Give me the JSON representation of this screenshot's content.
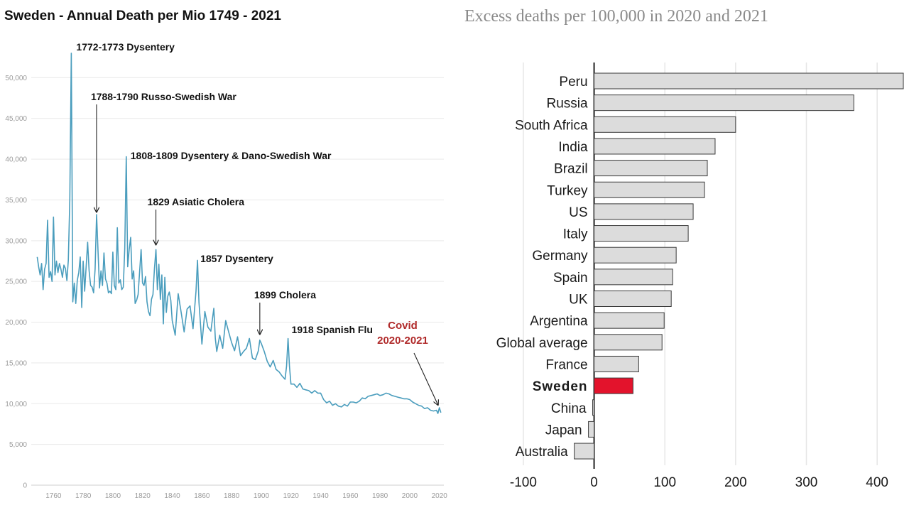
{
  "chart_data": [
    {
      "type": "line",
      "title": "Sweden - Annual Death per Mio 1749 - 2021",
      "xlim": [
        1745,
        2023
      ],
      "ylim": [
        0,
        55000
      ],
      "x_ticks": [
        1760,
        1780,
        1800,
        1820,
        1840,
        1860,
        1880,
        1900,
        1920,
        1940,
        1960,
        1980,
        2000,
        2020
      ],
      "y_ticks": [
        0,
        5000,
        10000,
        15000,
        20000,
        25000,
        30000,
        35000,
        40000,
        45000,
        50000
      ],
      "y_tick_labels": [
        "0",
        "5,000",
        "10,000",
        "15,000",
        "20,000",
        "25,000",
        "30,000",
        "35,000",
        "40,000",
        "45,000",
        "50,000"
      ],
      "grid": "horizontal",
      "line_color": "#4a9dbd",
      "series": [
        {
          "x": [
            1749,
            1750,
            1751,
            1752,
            1753,
            1754,
            1755,
            1756,
            1757,
            1758,
            1759,
            1760,
            1761,
            1762,
            1763,
            1764,
            1765,
            1766,
            1767,
            1768,
            1769,
            1770,
            1771,
            1772,
            1773,
            1774,
            1775,
            1776,
            1777,
            1778,
            1779,
            1780,
            1781,
            1782,
            1783,
            1784,
            1785,
            1786,
            1787,
            1788,
            1789,
            1790,
            1791,
            1792,
            1793,
            1794,
            1795,
            1796,
            1797,
            1798,
            1799,
            1800,
            1801,
            1802,
            1803,
            1804,
            1805,
            1806,
            1807,
            1808,
            1809,
            1810,
            1811,
            1812,
            1813,
            1814,
            1815,
            1816,
            1817,
            1818,
            1819,
            1820,
            1821,
            1822,
            1823,
            1824,
            1825,
            1826,
            1827,
            1828,
            1829,
            1830,
            1831,
            1832,
            1833,
            1834,
            1835,
            1836,
            1837,
            1838,
            1839,
            1840,
            1842,
            1844,
            1846,
            1848,
            1850,
            1852,
            1854,
            1856,
            1857,
            1858,
            1860,
            1862,
            1864,
            1866,
            1868,
            1869,
            1870,
            1872,
            1874,
            1876,
            1878,
            1880,
            1882,
            1884,
            1886,
            1888,
            1890,
            1892,
            1894,
            1896,
            1898,
            1899,
            1900,
            1902,
            1904,
            1906,
            1908,
            1910,
            1912,
            1914,
            1916,
            1917,
            1918,
            1919,
            1920,
            1922,
            1924,
            1926,
            1928,
            1930,
            1932,
            1934,
            1936,
            1938,
            1940,
            1942,
            1944,
            1946,
            1948,
            1950,
            1952,
            1954,
            1956,
            1958,
            1960,
            1962,
            1964,
            1966,
            1968,
            1970,
            1972,
            1974,
            1976,
            1978,
            1980,
            1982,
            1984,
            1986,
            1988,
            1990,
            1992,
            1994,
            1996,
            1998,
            2000,
            2002,
            2004,
            2006,
            2008,
            2010,
            2012,
            2014,
            2016,
            2018,
            2019,
            2020,
            2021
          ],
          "y": [
            28000,
            26800,
            25800,
            27200,
            24000,
            26500,
            27200,
            32500,
            25500,
            26200,
            25000,
            32900,
            25800,
            27500,
            26100,
            27200,
            26500,
            25500,
            27000,
            26600,
            25100,
            27600,
            35000,
            53000,
            22500,
            24800,
            22300,
            25100,
            26100,
            28000,
            21800,
            27500,
            23800,
            26800,
            29800,
            26300,
            24500,
            24300,
            23600,
            26500,
            33200,
            28800,
            24200,
            26300,
            24500,
            28500,
            25300,
            24800,
            23600,
            23800,
            23500,
            28600,
            24500,
            24000,
            31600,
            24800,
            25200,
            24000,
            24300,
            29100,
            40300,
            26800,
            28900,
            30400,
            25300,
            26300,
            22300,
            22700,
            23400,
            26200,
            28900,
            24800,
            24500,
            25600,
            22500,
            21300,
            20800,
            22800,
            23400,
            26600,
            28900,
            24000,
            27100,
            22800,
            25800,
            19800,
            25500,
            21200,
            23200,
            23700,
            22700,
            20200,
            18400,
            23500,
            21200,
            18800,
            21600,
            22000,
            19200,
            23800,
            27600,
            22400,
            17300,
            21300,
            19400,
            18900,
            21700,
            18000,
            16400,
            18400,
            16800,
            20200,
            18800,
            17500,
            16500,
            18200,
            15900,
            16400,
            16800,
            18000,
            15600,
            15400,
            16500,
            17800,
            17400,
            16400,
            15200,
            14500,
            15300,
            14200,
            13900,
            13400,
            13000,
            14600,
            18000,
            14600,
            12400,
            12400,
            12000,
            12500,
            11800,
            11700,
            11600,
            11300,
            11600,
            11300,
            11300,
            10500,
            10100,
            10300,
            9800,
            10000,
            9700,
            9600,
            9900,
            9700,
            10200,
            10200,
            10100,
            10300,
            10700,
            10600,
            10900,
            11000,
            11100,
            11200,
            11000,
            11100,
            11300,
            11200,
            11000,
            10900,
            10800,
            10700,
            10600,
            10600,
            10500,
            10200,
            10000,
            9800,
            9700,
            9400,
            9500,
            9200,
            9100,
            9200,
            8800,
            9500,
            8900
          ]
        }
      ],
      "annotations": [
        {
          "label": "1772-1773 Dysentery",
          "year": 1772,
          "value": 53000,
          "arrow": false
        },
        {
          "label": "1788-1790 Russo-Swedish War",
          "year": 1789,
          "value": 33000,
          "arrow": true
        },
        {
          "label": "1808-1809 Dysentery & Dano-Swedish War",
          "year": 1809,
          "value": 40000,
          "arrow": false
        },
        {
          "label": "1829 Asiatic Cholera",
          "year": 1829,
          "value": 29000,
          "arrow": true
        },
        {
          "label": "1857 Dysentery",
          "year": 1857,
          "value": 27500,
          "arrow": false
        },
        {
          "label": "1899 Cholera",
          "year": 1899,
          "value": 18000,
          "arrow": true
        },
        {
          "label": "1918 Spanish Flu",
          "year": 1918,
          "value": 18000,
          "arrow": false
        }
      ],
      "covid_label_lines": [
        "Covid",
        "2020-2021"
      ],
      "covid_color": "#b02a2a"
    },
    {
      "type": "bar",
      "orientation": "horizontal",
      "title": "Excess deaths per 100,000 in 2020 and 2021",
      "categories": [
        "Peru",
        "Russia",
        "South Africa",
        "India",
        "Brazil",
        "Turkey",
        "US",
        "Italy",
        "Germany",
        "Spain",
        "UK",
        "Argentina",
        "Global average",
        "France",
        "Sweden",
        "China",
        "Japan",
        "Australia"
      ],
      "values": [
        437,
        367,
        200,
        171,
        160,
        156,
        140,
        133,
        116,
        111,
        109,
        99,
        96,
        63,
        55,
        -2,
        -8,
        -28
      ],
      "highlight": "Sweden",
      "highlight_color": "#e3132c",
      "bar_color": "#dcdcdc",
      "xlim": [
        -125,
        445
      ],
      "x_ticks": [
        -100,
        0,
        100,
        200,
        300,
        400
      ],
      "x_tick_labels": [
        "-100",
        "0",
        "100",
        "200",
        "300",
        "400"
      ],
      "grid": "vertical"
    }
  ]
}
